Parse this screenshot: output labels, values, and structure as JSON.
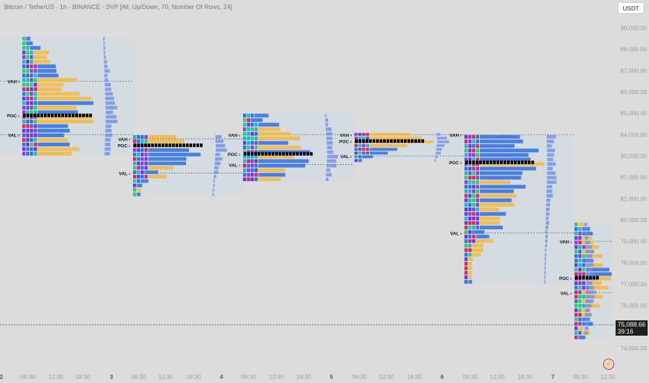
{
  "header": {
    "legend_text": "Bitcoin / TetherUS · 1h · BINANCE · SVP [All, Up/Down, 70, Number Of Rows, 24]",
    "currency_label": "USDT"
  },
  "last_price": {
    "price": "75,088.66",
    "countdown": "39:16",
    "value": 75088.66
  },
  "colors": {
    "background": "#dcdcdc",
    "profile_box": "#c9dce8",
    "poc_bar": "#000000",
    "dotted_line": "#555555",
    "palette": [
      "#6a36e8",
      "#8b3fd9",
      "#e0245e",
      "#2f6fe0",
      "#20b6c8",
      "#2ecc71",
      "#f5b840",
      "#777777",
      "#c9a8f5",
      "#6a8be8"
    ]
  },
  "icons": {
    "realtime": "lightning-bolt-icon"
  },
  "chart_data": {
    "type": "volume-profile",
    "title": "Bitcoin / TetherUS · 1h · BINANCE",
    "ylim": [
      73700,
      89700
    ],
    "y_ticks": [
      74000,
      75000,
      76000,
      77000,
      78000,
      79000,
      80000,
      81000,
      82000,
      83000,
      84000,
      85000,
      86000,
      87000,
      88000,
      89000
    ],
    "y_tick_labels": [
      "74,000.00",
      "75,000.00",
      "76,000.00",
      "77,000.00",
      "78,000.00",
      "79,000.00",
      "80,000.00",
      "81,000.00",
      "82,000.00",
      "83,000.00",
      "84,000.00",
      "85,000.00",
      "86,000.00",
      "87,000.00",
      "88,000.00",
      "89,000.00"
    ],
    "x_tick_labels": [
      "2",
      "06:30",
      "12:30",
      "18:30",
      "3",
      "06:30",
      "12:30",
      "18:30",
      "4",
      "06:30",
      "12:30",
      "18:30",
      "5",
      "06:30",
      "12:30",
      "18:30",
      "6",
      "06:30",
      "12:30",
      "18:30",
      "7",
      "06:30",
      "12:30"
    ],
    "sessions": [
      {
        "label": "2",
        "high": 88600,
        "low": 83000,
        "vah": 86500,
        "poc": 84900,
        "val": 84000
      },
      {
        "label": "3",
        "high": 84000,
        "low": 81100,
        "vah": 83800,
        "poc": 83500,
        "val": 82200
      },
      {
        "label": "4",
        "high": 85000,
        "low": 81800,
        "vah": 84000,
        "poc": 83100,
        "val": 82600
      },
      {
        "label": "5",
        "high": 84100,
        "low": 82700,
        "vah": 84000,
        "poc": 83700,
        "val": 83000
      },
      {
        "label": "6",
        "high": 84000,
        "low": 77000,
        "vah": 84000,
        "poc": 82700,
        "val": 79400
      },
      {
        "label": "7",
        "high": 79900,
        "low": 74400,
        "vah": 79000,
        "poc": 77300,
        "val": 76600
      }
    ],
    "last_price": 75088.66
  }
}
